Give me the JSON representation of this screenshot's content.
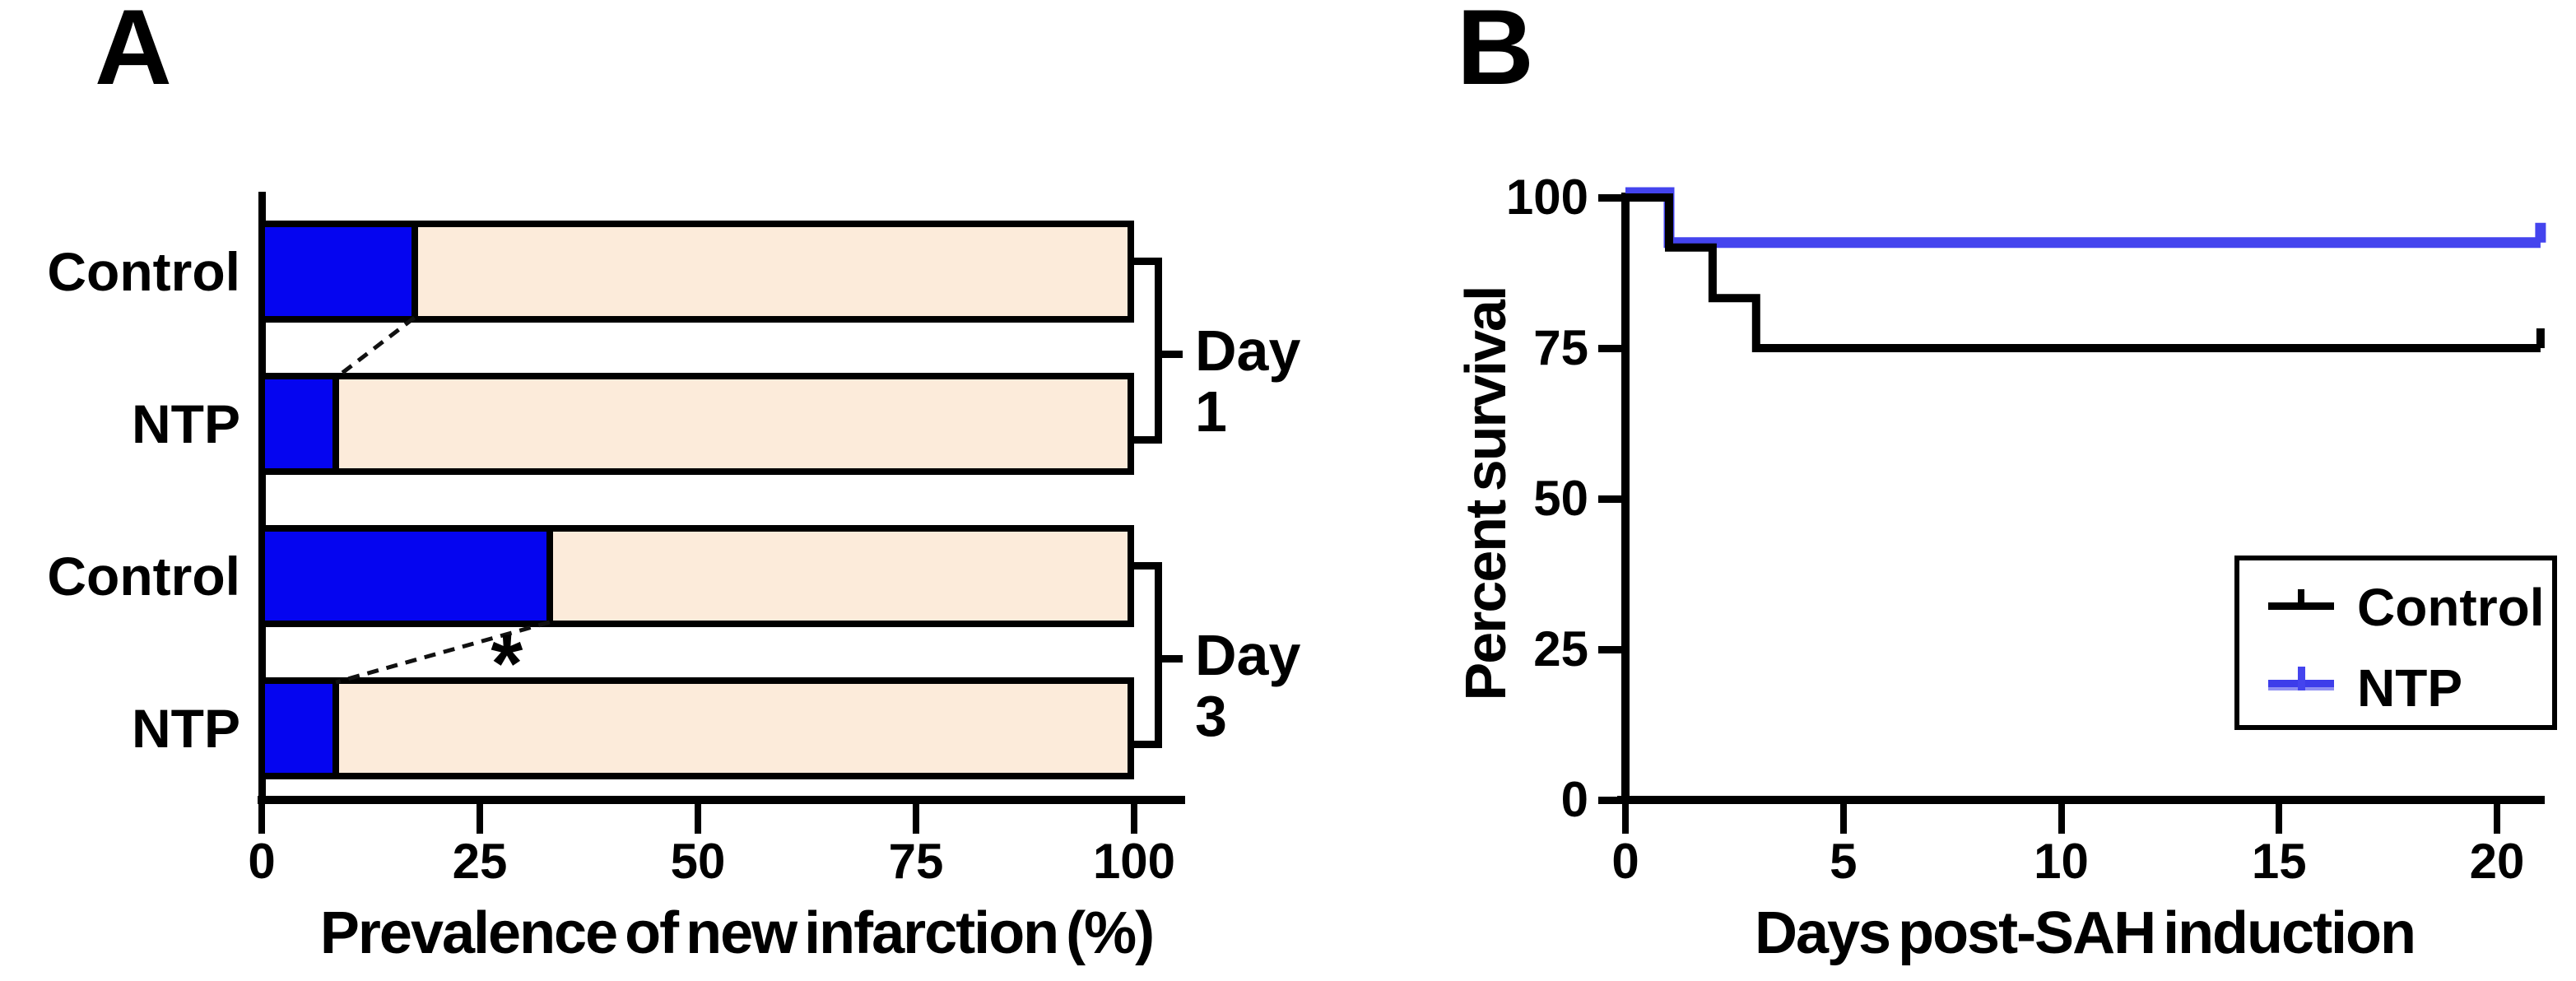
{
  "figure": {
    "panel_a_letter": "A",
    "panel_b_letter": "B"
  },
  "chart_data": [
    {
      "id": "A",
      "type": "bar",
      "orientation": "horizontal-stacked",
      "xlabel": "Prevalence of new infarction (%)",
      "xlim": [
        0,
        100
      ],
      "xticks": [
        0,
        25,
        50,
        75,
        100
      ],
      "rows": [
        {
          "label": "Control",
          "group": "Day 1",
          "new_infarction_pct": 17.5,
          "no_new_infarction_pct": 82.5
        },
        {
          "label": "NTP",
          "group": "Day 1",
          "new_infarction_pct": 8.5,
          "no_new_infarction_pct": 91.5
        },
        {
          "label": "Control",
          "group": "Day 3",
          "new_infarction_pct": 33,
          "no_new_infarction_pct": 67
        },
        {
          "label": "NTP",
          "group": "Day 3",
          "new_infarction_pct": 8.5,
          "no_new_infarction_pct": 91.5
        }
      ],
      "group_brackets": [
        {
          "label": "Day 1",
          "rows": [
            0,
            1
          ]
        },
        {
          "label": "Day 3",
          "rows": [
            2,
            3
          ]
        }
      ],
      "connectors": [
        {
          "between_rows": [
            0,
            1
          ]
        },
        {
          "between_rows": [
            2,
            3
          ],
          "significance_marker": "*"
        }
      ],
      "colors": {
        "new_infarction": "#0505F0",
        "no_new_infarction": "#FCEBDA",
        "outline": "#000000"
      }
    },
    {
      "id": "B",
      "type": "line",
      "subtype": "kaplan-meier",
      "xlabel": "Days post-SAH induction",
      "ylabel": "Percent survival",
      "xlim": [
        0,
        21
      ],
      "ylim": [
        0,
        100
      ],
      "xticks": [
        0,
        5,
        10,
        15,
        20
      ],
      "yticks": [
        100,
        75,
        50,
        25,
        0
      ],
      "series": [
        {
          "name": "NTP",
          "color": "#4444EE",
          "x": [
            0,
            1,
            1,
            21
          ],
          "y": [
            100,
            100,
            91.7,
            91.7
          ],
          "terminal_tick": true
        },
        {
          "name": "Control",
          "color": "#000000",
          "x": [
            0,
            1,
            1,
            2,
            2,
            3,
            3,
            21
          ],
          "y": [
            100,
            100,
            91.7,
            91.7,
            83.3,
            83.3,
            75,
            75
          ],
          "terminal_tick": true
        }
      ],
      "legend": {
        "position": "right-center",
        "entries": [
          "Control",
          "NTP"
        ]
      }
    }
  ]
}
